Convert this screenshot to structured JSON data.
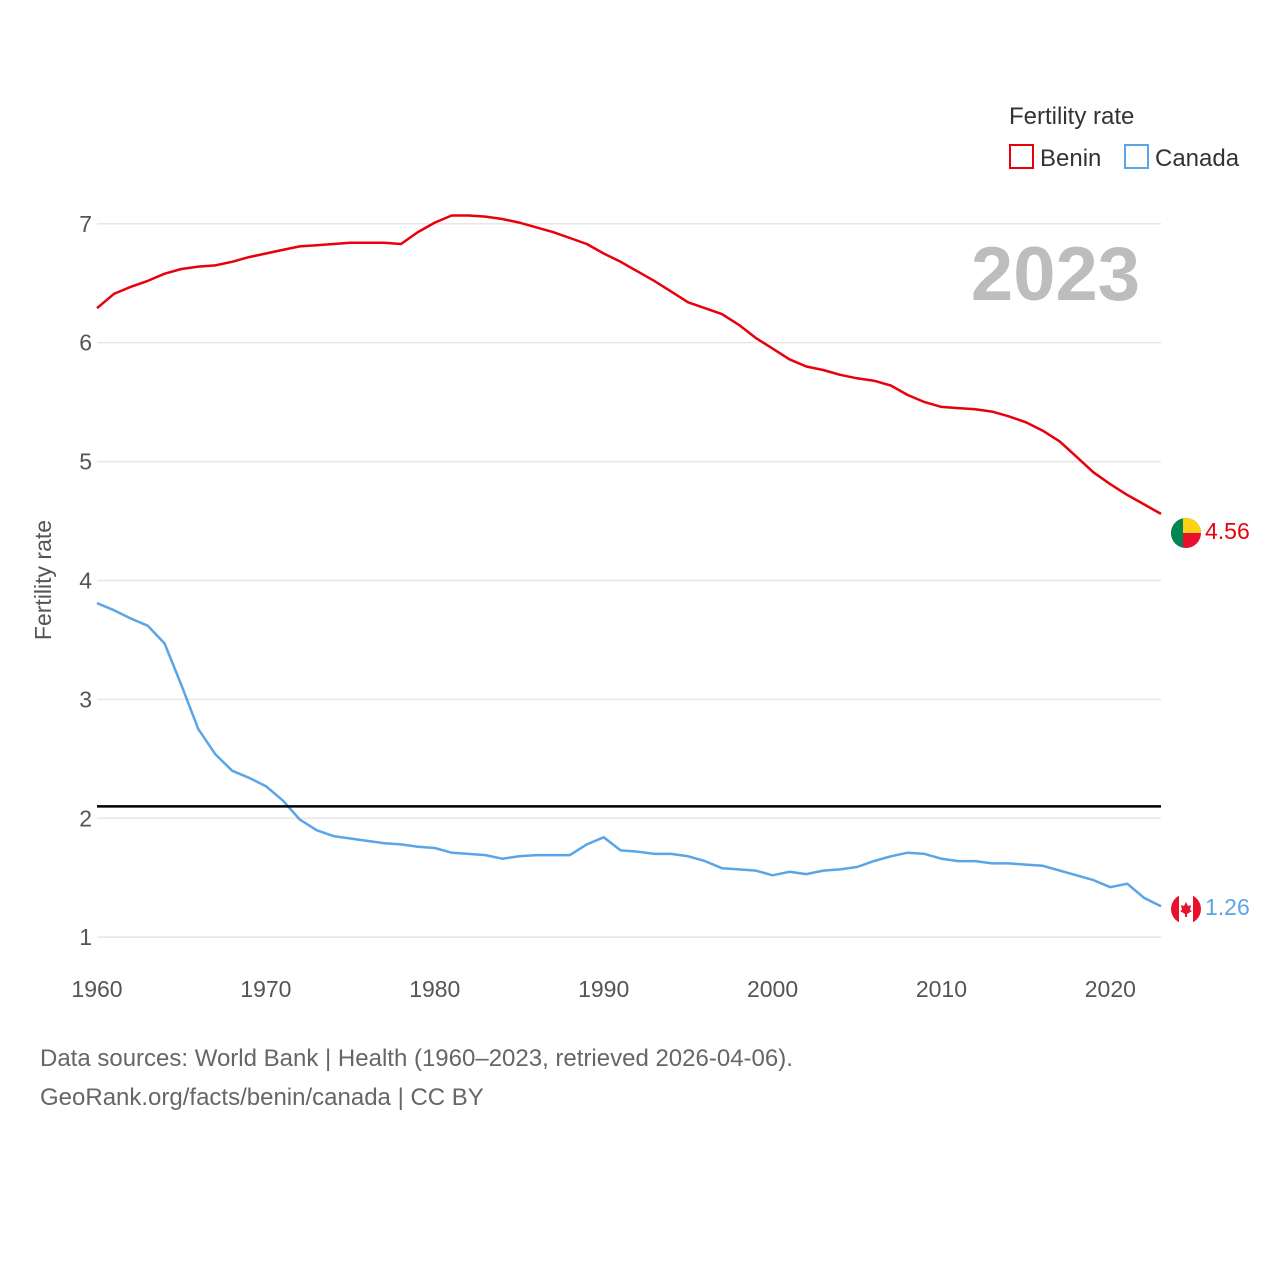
{
  "chart_data": {
    "type": "line",
    "ylabel": "Fertility rate",
    "xlabel": "",
    "year_label": "2023",
    "xlim": [
      1960,
      2023
    ],
    "ylim": [
      0.85,
      7.2
    ],
    "y_ticks": [
      1,
      2,
      3,
      4,
      5,
      6,
      7
    ],
    "x_ticks": [
      1960,
      1970,
      1980,
      1990,
      2000,
      2010,
      2020
    ],
    "reference_line": 2.1,
    "legend": {
      "title": "Fertility rate",
      "position": "top-right"
    },
    "x": [
      1960,
      1961,
      1962,
      1963,
      1964,
      1965,
      1966,
      1967,
      1968,
      1969,
      1970,
      1971,
      1972,
      1973,
      1974,
      1975,
      1976,
      1977,
      1978,
      1979,
      1980,
      1981,
      1982,
      1983,
      1984,
      1985,
      1986,
      1987,
      1988,
      1989,
      1990,
      1991,
      1992,
      1993,
      1994,
      1995,
      1996,
      1997,
      1998,
      1999,
      2000,
      2001,
      2002,
      2003,
      2004,
      2005,
      2006,
      2007,
      2008,
      2009,
      2010,
      2011,
      2012,
      2013,
      2014,
      2015,
      2016,
      2017,
      2018,
      2019,
      2020,
      2021,
      2022,
      2023
    ],
    "series": [
      {
        "name": "Benin",
        "color": "#e8000b",
        "end_value_label": "4.56",
        "values": [
          6.29,
          6.41,
          6.47,
          6.52,
          6.58,
          6.62,
          6.64,
          6.65,
          6.68,
          6.72,
          6.75,
          6.78,
          6.81,
          6.82,
          6.83,
          6.84,
          6.84,
          6.84,
          6.83,
          6.93,
          7.01,
          7.07,
          7.07,
          7.06,
          7.04,
          7.01,
          6.97,
          6.93,
          6.88,
          6.83,
          6.75,
          6.68,
          6.6,
          6.52,
          6.43,
          6.34,
          6.29,
          6.24,
          6.15,
          6.04,
          5.95,
          5.86,
          5.8,
          5.77,
          5.73,
          5.7,
          5.68,
          5.64,
          5.56,
          5.5,
          5.46,
          5.45,
          5.44,
          5.42,
          5.38,
          5.33,
          5.26,
          5.17,
          5.04,
          4.91,
          4.81,
          4.72,
          4.64,
          4.56
        ]
      },
      {
        "name": "Canada",
        "color": "#5aa5e6",
        "end_value_label": "1.26",
        "values": [
          3.81,
          3.75,
          3.68,
          3.62,
          3.47,
          3.12,
          2.75,
          2.54,
          2.4,
          2.34,
          2.27,
          2.15,
          1.99,
          1.9,
          1.85,
          1.83,
          1.81,
          1.79,
          1.78,
          1.76,
          1.75,
          1.71,
          1.7,
          1.69,
          1.66,
          1.68,
          1.69,
          1.69,
          1.69,
          1.78,
          1.84,
          1.73,
          1.72,
          1.7,
          1.7,
          1.68,
          1.64,
          1.58,
          1.57,
          1.56,
          1.52,
          1.55,
          1.53,
          1.56,
          1.57,
          1.59,
          1.64,
          1.68,
          1.71,
          1.7,
          1.66,
          1.64,
          1.64,
          1.62,
          1.62,
          1.61,
          1.6,
          1.56,
          1.52,
          1.48,
          1.42,
          1.45,
          1.33,
          1.26
        ]
      }
    ]
  },
  "footer": {
    "line1": "Data sources: World Bank | Health (1960–2023, retrieved 2026-04-06).",
    "line2": "GeoRank.org/facts/benin/canada | CC BY"
  }
}
